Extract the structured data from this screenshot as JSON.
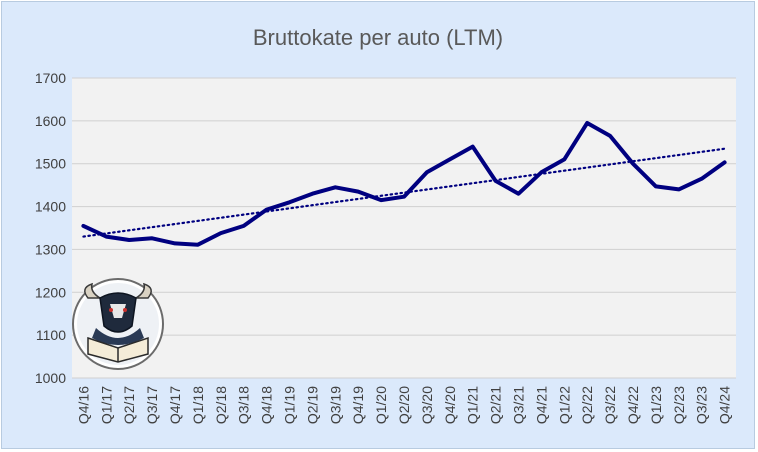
{
  "chart_data": {
    "type": "line",
    "title": "Bruttokate per auto (LTM)",
    "xlabel": "",
    "ylabel": "",
    "ylim": [
      1000,
      1700
    ],
    "yticks": [
      1000,
      1100,
      1200,
      1300,
      1400,
      1500,
      1600,
      1700
    ],
    "grid": "horizontal",
    "legend": "none",
    "categories": [
      "Q4/16",
      "Q1/17",
      "Q2/17",
      "Q3/17",
      "Q4/17",
      "Q1/18",
      "Q2/18",
      "Q3/18",
      "Q4/18",
      "Q1/19",
      "Q2/19",
      "Q3/19",
      "Q4/19",
      "Q1/20",
      "Q2/20",
      "Q3/20",
      "Q4/20",
      "Q1/21",
      "Q2/21",
      "Q3/21",
      "Q4/21",
      "Q1/22",
      "Q2/22",
      "Q3/22",
      "Q4/22",
      "Q1/23",
      "Q2/23",
      "Q3/23",
      "Q4/24"
    ],
    "series": [
      {
        "values": [
          1355,
          1330,
          1322,
          1326,
          1314,
          1311,
          1338,
          1355,
          1393,
          1410,
          1430,
          1445,
          1435,
          1415,
          1423,
          1480,
          1510,
          1540,
          1460,
          1430,
          1480,
          1510,
          1595,
          1565,
          1500,
          1447,
          1440,
          1465,
          1503
        ],
        "color": "#000080"
      }
    ],
    "trendline": {
      "style": "dotted",
      "color": "#000080",
      "start": 1330,
      "end": 1535
    }
  },
  "logo": {
    "icon": "bull-reading-book-icon"
  }
}
